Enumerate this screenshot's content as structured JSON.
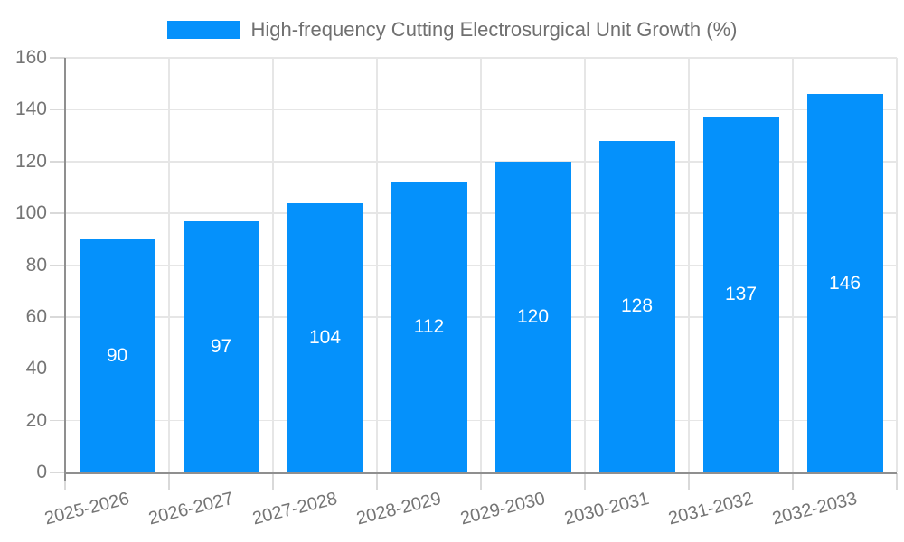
{
  "chart_data": {
    "type": "bar",
    "title": "High-frequency Cutting Electrosurgical Unit Growth (%)",
    "categories": [
      "2025-2026",
      "2026-2027",
      "2027-2028",
      "2028-2029",
      "2029-2030",
      "2030-2031",
      "2031-2032",
      "2032-2033"
    ],
    "values": [
      90,
      97,
      104,
      112,
      120,
      128,
      137,
      146
    ],
    "xlabel": "",
    "ylabel": "",
    "ylim": [
      0,
      160
    ],
    "yticks": [
      0,
      20,
      40,
      60,
      80,
      100,
      120,
      140,
      160
    ],
    "grid": true,
    "legend_position": "top-center",
    "value_labels": "inside-center"
  },
  "legend": {
    "label": "High-frequency Cutting Electrosurgical Unit Growth (%)"
  },
  "colors": {
    "bar": "#0591FB",
    "value_label": "#ffffff",
    "gridline": "#e6e6e6",
    "axis_line": "#8f8f8f",
    "tick_mark": "#d9d9d9",
    "tick_label": "#757575",
    "legend_text": "#707070",
    "background": "#ffffff"
  }
}
